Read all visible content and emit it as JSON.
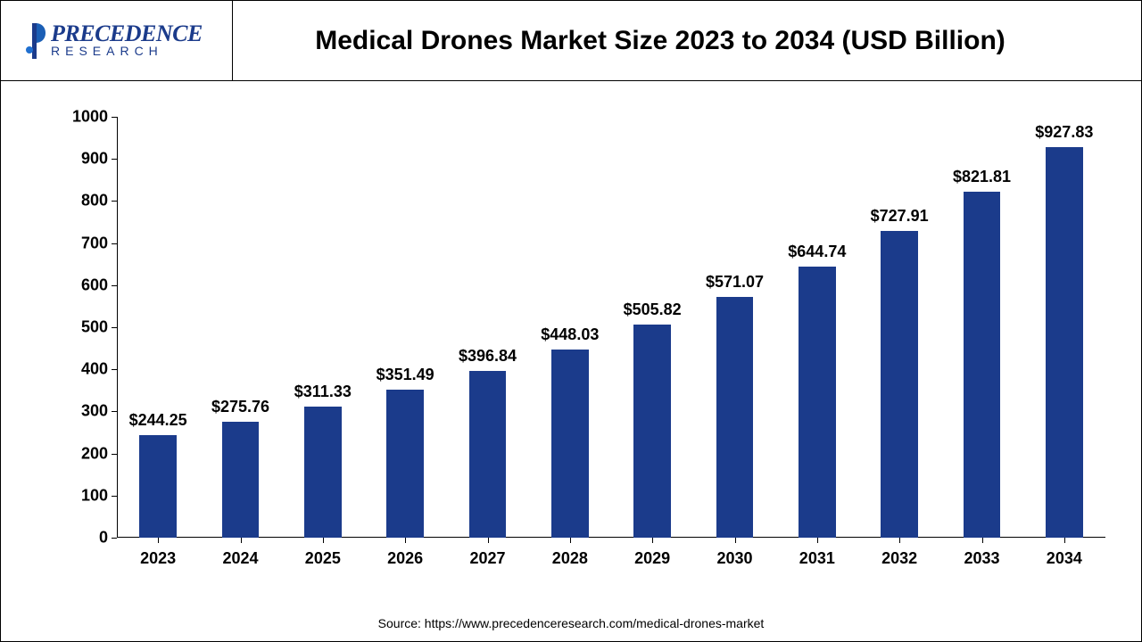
{
  "logo": {
    "main": "PRECEDENCE",
    "sub": "RESEARCH"
  },
  "chart": {
    "type": "bar",
    "title": "Medical Drones Market Size 2023 to 2034 (USD Billion)",
    "title_fontsize": 30,
    "title_weight": "bold",
    "categories": [
      "2023",
      "2024",
      "2025",
      "2026",
      "2027",
      "2028",
      "2029",
      "2030",
      "2031",
      "2032",
      "2033",
      "2034"
    ],
    "values": [
      244.25,
      275.76,
      311.33,
      351.49,
      396.84,
      448.03,
      505.82,
      571.07,
      644.74,
      727.91,
      821.81,
      927.83
    ],
    "value_prefix": "$",
    "bar_color": "#1b3b8b",
    "ylim": [
      0,
      1000
    ],
    "ytick_step": 100,
    "yticks": [
      0,
      100,
      200,
      300,
      400,
      500,
      600,
      700,
      800,
      900,
      1000
    ],
    "axis_color": "#000000",
    "background_color": "#ffffff",
    "bar_width_ratio": 0.45,
    "label_fontsize": 18,
    "label_weight": "bold",
    "tick_fontsize": 18,
    "tick_weight": "bold"
  },
  "source": "Source: https://www.precedenceresearch.com/medical-drones-market"
}
